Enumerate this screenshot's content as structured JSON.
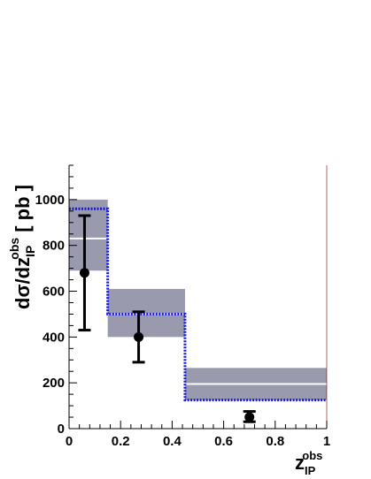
{
  "chart_data": {
    "type": "step-histogram",
    "ylabel": {
      "prefix": "d",
      "sigma": "σ",
      "mid": "/dz",
      "sub": "IP",
      "sup": "obs",
      "unit": "[ pb ]"
    },
    "xlabel": {
      "main": "z",
      "sub": "IP",
      "sup": "obs"
    },
    "xlim": [
      0,
      1
    ],
    "ylim": [
      0,
      1150
    ],
    "xticks": [
      "0",
      "0.2",
      "0.4",
      "0.6",
      "0.8",
      "1"
    ],
    "yticks": [
      "0",
      "200",
      "400",
      "600",
      "800",
      "1000"
    ],
    "bins": [
      {
        "xlo": 0.0,
        "xhi": 0.15,
        "band_lo": 690,
        "band_hi": 1000,
        "band_center": 830,
        "model": 960
      },
      {
        "xlo": 0.15,
        "xhi": 0.45,
        "band_lo": 400,
        "band_hi": 610,
        "band_center": 500,
        "model": 500
      },
      {
        "xlo": 0.45,
        "xhi": 1.0,
        "band_lo": 125,
        "band_hi": 265,
        "band_center": 195,
        "model": 125
      }
    ],
    "points": [
      {
        "x": 0.06,
        "y": 680,
        "stat_lo": 430,
        "stat_hi": 930,
        "tot_lo": 430,
        "tot_hi": 930
      },
      {
        "x": 0.27,
        "y": 400,
        "stat_lo": 290,
        "stat_hi": 510,
        "tot_lo": 290,
        "tot_hi": 510
      },
      {
        "x": 0.7,
        "y": 50,
        "stat_lo": 30,
        "stat_hi": 75,
        "tot_lo": 30,
        "tot_hi": 75
      }
    ],
    "colors": {
      "band": "#9a9aae",
      "band_center": "#ffffff",
      "model": "#1515e6",
      "data": "#000000",
      "axis": "#000000"
    }
  }
}
